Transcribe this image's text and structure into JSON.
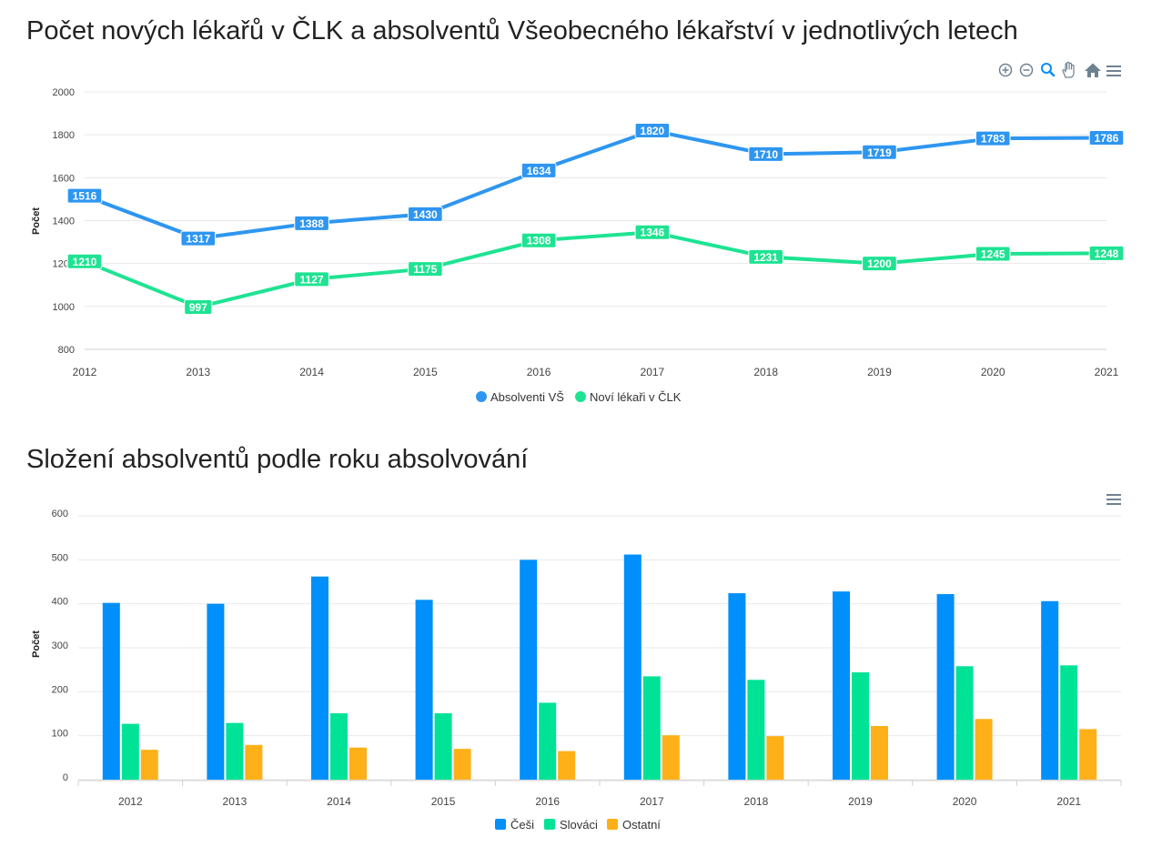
{
  "charts": [
    {
      "title": "Počet nových lékařů v ČLK a absolventů Všeobecného lékařství v jednotlivých letech"
    },
    {
      "title": "Složení absolventů podle roku absolvování"
    }
  ],
  "toolbar": {
    "icons": [
      "zoom-in-icon",
      "zoom-out-icon",
      "zoom-select-icon",
      "pan-icon",
      "reset-home-icon",
      "menu-icon"
    ]
  },
  "chart_data": [
    {
      "type": "line",
      "x": [
        2012,
        2013,
        2014,
        2015,
        2016,
        2017,
        2018,
        2019,
        2020,
        2021
      ],
      "ylabel": "Počet",
      "ylim": [
        800,
        2000
      ],
      "yticks": [
        800,
        1000,
        1200,
        1400,
        1600,
        1800,
        2000
      ],
      "grid": true,
      "legend_position": "bottom-center",
      "data_labels": true,
      "series": [
        {
          "name": "Absolventi VŠ",
          "color": "#2e96f0",
          "values": [
            1516,
            1317,
            1388,
            1430,
            1634,
            1820,
            1710,
            1719,
            1783,
            1786
          ]
        },
        {
          "name": "Noví lékaři v ČLK",
          "color": "#1ee392",
          "values": [
            1210,
            997,
            1127,
            1175,
            1308,
            1346,
            1231,
            1200,
            1245,
            1248
          ]
        }
      ]
    },
    {
      "type": "bar",
      "categories": [
        "2012",
        "2013",
        "2014",
        "2015",
        "2016",
        "2017",
        "2018",
        "2019",
        "2020",
        "2021"
      ],
      "ylabel": "Počet",
      "ylim": [
        0,
        600
      ],
      "yticks": [
        0,
        100,
        200,
        300,
        400,
        500,
        600
      ],
      "grid": true,
      "legend_position": "bottom-center",
      "series": [
        {
          "name": "Češi",
          "color": "#008ffb",
          "values": [
            402,
            400,
            462,
            409,
            500,
            512,
            424,
            428,
            422,
            406
          ]
        },
        {
          "name": "Slováci",
          "color": "#00e396",
          "values": [
            127,
            129,
            151,
            151,
            175,
            235,
            227,
            244,
            258,
            260
          ]
        },
        {
          "name": "Ostatní",
          "color": "#feb019",
          "values": [
            68,
            79,
            73,
            70,
            65,
            101,
            99,
            122,
            138,
            115
          ]
        }
      ]
    }
  ]
}
